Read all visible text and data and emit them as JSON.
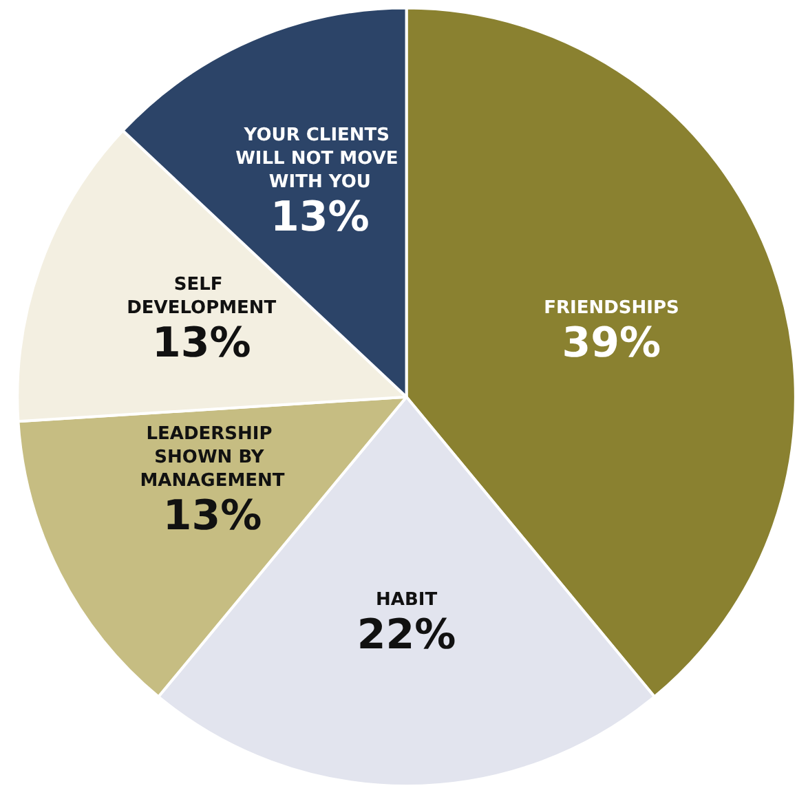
{
  "chart_data": {
    "type": "pie",
    "categories": [
      "FRIENDSHIPS",
      "HABIT",
      "LEADERSHIP SHOWN BY MANAGEMENT",
      "SELF DEVELOPMENT",
      "YOUR CLIENTS WILL NOT MOVE WITH YOU"
    ],
    "values": [
      39,
      22,
      13,
      13,
      13
    ],
    "value_labels": [
      "39%",
      "22%",
      "13%",
      "13%",
      "13%"
    ],
    "colors": [
      "#8a8130",
      "#e2e4ee",
      "#c6bd82",
      "#f3efe1",
      "#2c4468"
    ],
    "legend": false
  }
}
